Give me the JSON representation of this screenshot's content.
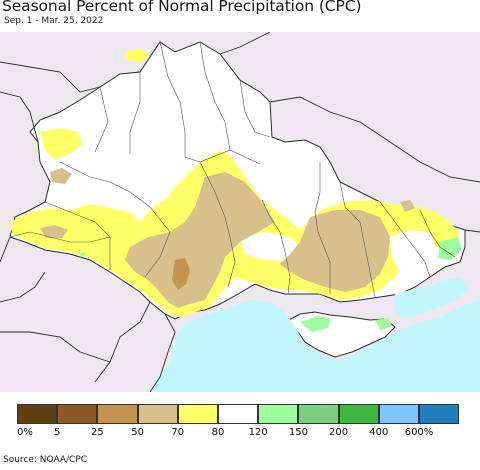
{
  "title": "Seasonal Percent of Normal Precipitation (CPC)",
  "subtitle": "Sep. 1 - Mar. 25, 2022",
  "source": "Source: NOAA/CPC",
  "legend": {
    "labels": [
      "0%",
      "5",
      "25",
      "50",
      "70",
      "80",
      "120",
      "150",
      "200",
      "400",
      "600%"
    ],
    "colors": [
      "#5c4011",
      "#8c5a24",
      "#c39350",
      "#d8c08c",
      "#ffff66",
      "#ffffff",
      "#9aff9a",
      "#7ed07e",
      "#3fb63f",
      "#7fc5ff",
      "#1f7fbf"
    ]
  },
  "colors": {
    "sea": "#bff6fb",
    "outside": "#ede8ee",
    "border": "#2b2b2b"
  }
}
